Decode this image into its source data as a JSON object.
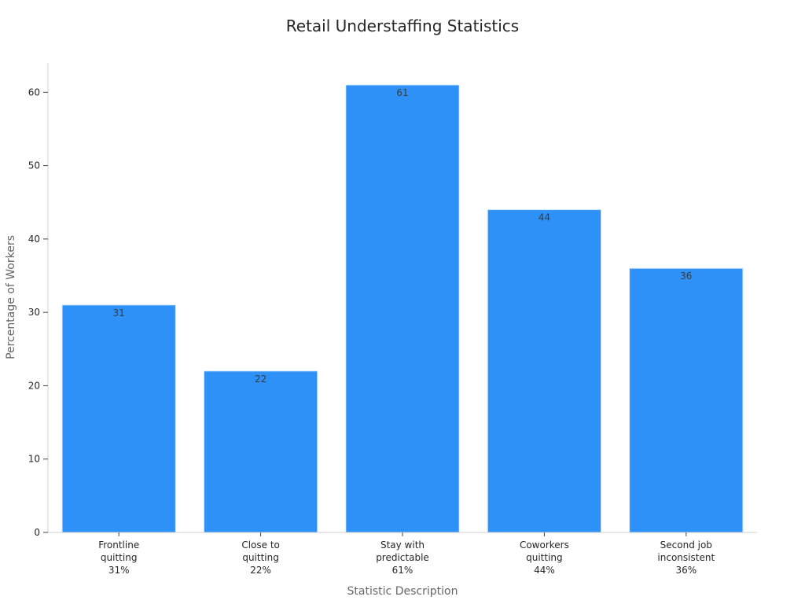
{
  "chart_data": {
    "type": "bar",
    "title": "Retail Understaffing Statistics",
    "xlabel": "Statistic Description",
    "ylabel": "Percentage of Workers",
    "categories": [
      [
        "Frontline",
        "quitting",
        "31%"
      ],
      [
        "Close to",
        "quitting",
        "22%"
      ],
      [
        "Stay with",
        "predictable",
        "61%"
      ],
      [
        "Coworkers",
        "quitting",
        "44%"
      ],
      [
        "Second job",
        "inconsistent",
        "36%"
      ]
    ],
    "values": [
      31,
      22,
      61,
      44,
      36
    ],
    "data_labels": [
      "31",
      "22",
      "61",
      "44",
      "36"
    ],
    "ylim": [
      0,
      64
    ],
    "yticks": [
      0,
      10,
      20,
      30,
      40,
      50,
      60
    ],
    "ytick_labels": [
      "0",
      "10",
      "20",
      "30",
      "40",
      "50",
      "60"
    ],
    "bar_color": "#2e91f8",
    "grid": false,
    "legend": "none"
  }
}
